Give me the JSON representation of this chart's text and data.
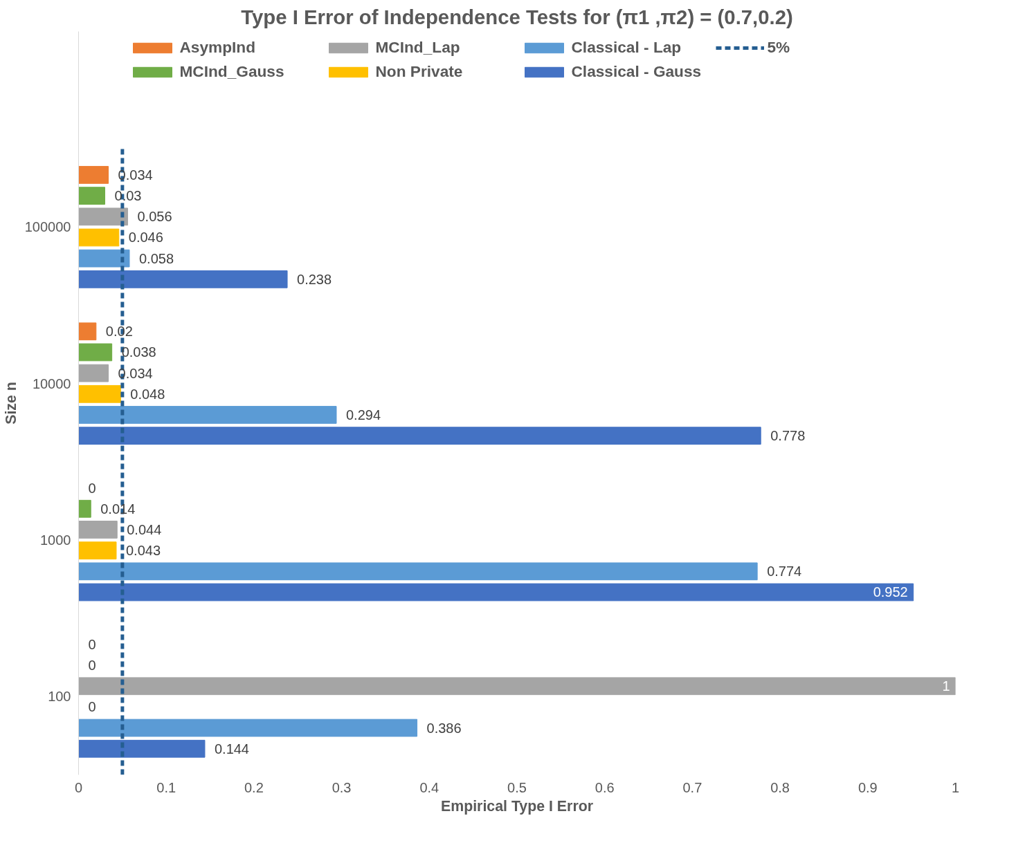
{
  "chart_data": {
    "type": "bar",
    "orientation": "horizontal",
    "title": "Type I Error of Independence Tests for (π1 ,π2) = (0.7,0.2)",
    "xlabel": "Empirical Type I Error",
    "ylabel": "Size n",
    "categories": [
      "100000",
      "10000",
      "1000",
      "100"
    ],
    "series": [
      {
        "name": "AsympInd",
        "color": "#ed7d31",
        "values": [
          0.034,
          0.02,
          0,
          0
        ]
      },
      {
        "name": "MCInd_Gauss",
        "color": "#70ad47",
        "values": [
          0.03,
          0.038,
          0.014,
          0
        ]
      },
      {
        "name": "MCInd_Lap",
        "color": "#a5a5a5",
        "values": [
          0.056,
          0.034,
          0.044,
          1
        ]
      },
      {
        "name": "Non Private",
        "color": "#ffc000",
        "values": [
          0.046,
          0.048,
          0.043,
          0
        ]
      },
      {
        "name": "Classical - Lap",
        "color": "#5b9bd5",
        "values": [
          0.058,
          0.294,
          0.774,
          0.386
        ]
      },
      {
        "name": "Classical - Gauss",
        "color": "#4472c4",
        "values": [
          0.238,
          0.778,
          0.952,
          0.144
        ]
      }
    ],
    "ref_lines": [
      {
        "axis": "x",
        "value": 0.05,
        "label": "5%",
        "color": "#255e91",
        "line_style": "dashed"
      }
    ],
    "xlim": [
      0,
      1
    ],
    "xticks": [
      0,
      0.1,
      0.2,
      0.3,
      0.4,
      0.5,
      0.6,
      0.7,
      0.8,
      0.9,
      1
    ],
    "data_labels": true,
    "grid": false,
    "legend": "top"
  }
}
